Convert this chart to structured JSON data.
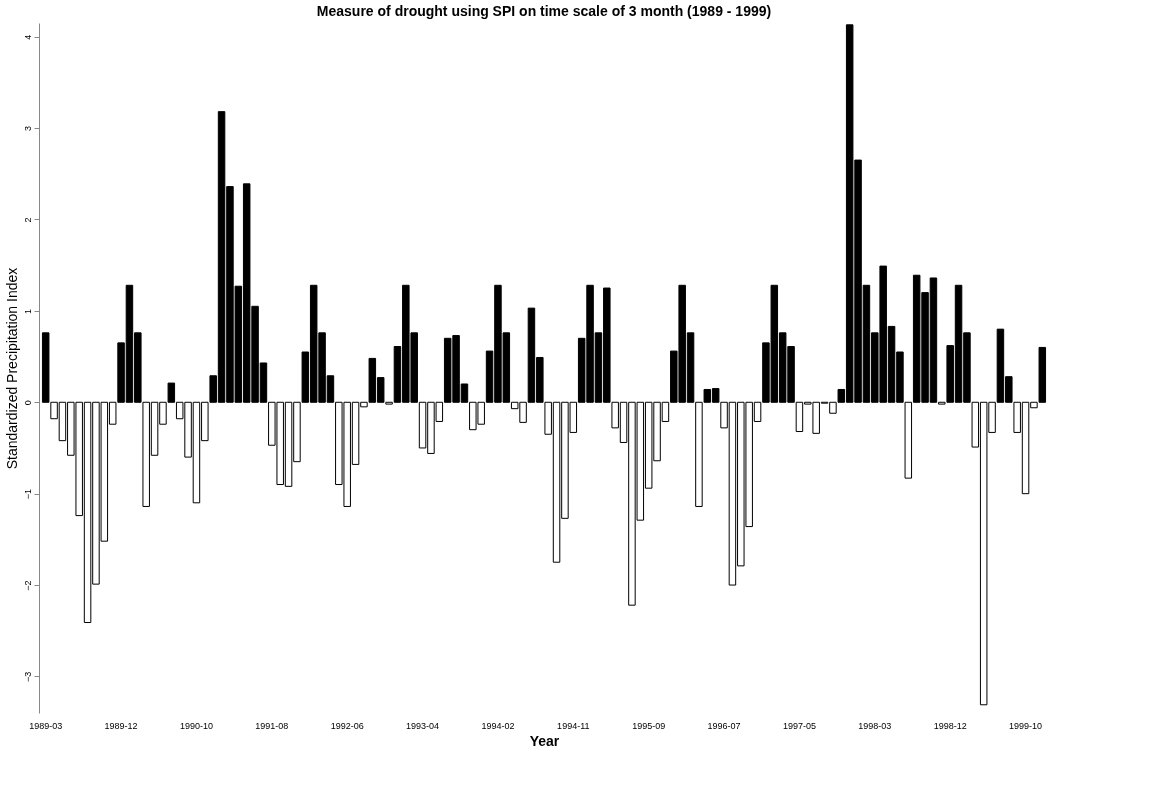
{
  "chart_data": {
    "type": "bar",
    "title": "Measure of drought using SPI on time scale of 3 month (1989 - 1999)",
    "xlabel": "Year",
    "ylabel": "Standardized Precipitation Index",
    "categories": [
      "1989-03",
      null,
      null,
      null,
      null,
      null,
      null,
      null,
      null,
      "1989-12",
      null,
      null,
      null,
      null,
      null,
      null,
      null,
      null,
      "1990-10",
      null,
      null,
      null,
      null,
      null,
      null,
      null,
      null,
      "1991-08",
      null,
      null,
      null,
      null,
      null,
      null,
      null,
      null,
      "1992-06",
      null,
      null,
      null,
      null,
      null,
      null,
      null,
      null,
      "1993-04",
      null,
      null,
      null,
      null,
      null,
      null,
      null,
      null,
      "1994-02",
      null,
      null,
      null,
      null,
      null,
      null,
      null,
      null,
      "1994-11",
      null,
      null,
      null,
      null,
      null,
      null,
      null,
      null,
      "1995-09",
      null,
      null,
      null,
      null,
      null,
      null,
      null,
      null,
      "1996-07",
      null,
      null,
      null,
      null,
      null,
      null,
      null,
      null,
      "1997-05",
      null,
      null,
      null,
      null,
      null,
      null,
      null,
      null,
      "1998-03",
      null,
      null,
      null,
      null,
      null,
      null,
      null,
      null,
      "1998-12",
      null,
      null,
      null,
      null,
      null,
      null,
      null,
      null,
      "1999-10",
      null,
      null
    ],
    "values": [
      0.76,
      -0.18,
      -0.42,
      -0.58,
      -1.24,
      -2.41,
      -1.99,
      -1.52,
      -0.24,
      0.65,
      1.28,
      0.76,
      -1.14,
      -0.58,
      -0.24,
      0.21,
      -0.18,
      -0.6,
      -1.1,
      -0.42,
      0.29,
      3.18,
      2.36,
      1.27,
      2.39,
      1.05,
      0.43,
      -0.47,
      -0.9,
      -0.92,
      -0.65,
      0.55,
      1.28,
      0.76,
      0.29,
      -0.9,
      -1.14,
      -0.68,
      -0.05,
      0.48,
      0.27,
      -0.02,
      0.61,
      1.28,
      0.76,
      -0.5,
      -0.56,
      -0.21,
      0.7,
      0.73,
      0.2,
      -0.3,
      -0.24,
      0.56,
      1.28,
      0.76,
      -0.07,
      -0.22,
      1.03,
      0.49,
      -0.35,
      -1.75,
      -1.27,
      -0.33,
      0.7,
      1.28,
      0.76,
      1.25,
      -0.28,
      -0.44,
      -2.22,
      -1.29,
      -0.94,
      -0.64,
      -0.21,
      0.56,
      1.28,
      0.76,
      -1.14,
      0.14,
      0.15,
      -0.28,
      -2.0,
      -1.79,
      -1.36,
      -0.21,
      0.65,
      1.28,
      0.76,
      0.61,
      -0.32,
      -0.02,
      -0.34,
      -0.01,
      -0.12,
      0.14,
      4.13,
      2.65,
      1.28,
      0.76,
      1.49,
      0.83,
      0.55,
      -0.83,
      1.39,
      1.2,
      1.36,
      -0.02,
      0.62,
      1.28,
      0.76,
      -0.49,
      -3.31,
      -0.33,
      0.8,
      0.28,
      -0.33,
      -1.0,
      -0.06,
      0.6
    ],
    "colors": [
      "#000000",
      "#ffffff",
      "#ffffff",
      "#ffffff",
      "#ffffff",
      "#ffffff",
      "#ffffff",
      "#ffffff",
      "#ffffff",
      "#000000",
      "#000000",
      "#000000",
      "#ffffff",
      "#ffffff",
      "#ffffff",
      "#000000",
      "#ffffff",
      "#ffffff",
      "#ffffff",
      "#ffffff",
      "#000000",
      "#000000",
      "#000000",
      "#000000",
      "#000000",
      "#000000",
      "#000000",
      "#ffffff",
      "#ffffff",
      "#ffffff",
      "#ffffff",
      "#000000",
      "#000000",
      "#000000",
      "#000000",
      "#ffffff",
      "#ffffff",
      "#ffffff",
      "#ffffff",
      "#000000",
      "#000000",
      "#ffffff",
      "#000000",
      "#000000",
      "#000000",
      "#ffffff",
      "#ffffff",
      "#ffffff",
      "#000000",
      "#000000",
      "#000000",
      "#ffffff",
      "#ffffff",
      "#000000",
      "#000000",
      "#000000",
      "#ffffff",
      "#ffffff",
      "#000000",
      "#000000",
      "#ffffff",
      "#ffffff",
      "#ffffff",
      "#ffffff",
      "#000000",
      "#000000",
      "#000000",
      "#000000",
      "#ffffff",
      "#ffffff",
      "#ffffff",
      "#ffffff",
      "#ffffff",
      "#ffffff",
      "#ffffff",
      "#000000",
      "#000000",
      "#000000",
      "#ffffff",
      "#000000",
      "#000000",
      "#ffffff",
      "#ffffff",
      "#ffffff",
      "#ffffff",
      "#ffffff",
      "#000000",
      "#000000",
      "#000000",
      "#000000",
      "#ffffff",
      "#ffffff",
      "#ffffff",
      "#ffffff",
      "#ffffff",
      "#000000",
      "#000000",
      "#000000",
      "#000000",
      "#000000",
      "#000000",
      "#000000",
      "#000000",
      "#ffffff",
      "#000000",
      "#000000",
      "#000000",
      "#ffffff",
      "#000000",
      "#000000",
      "#000000",
      "#ffffff",
      "#ffffff",
      "#ffffff",
      "#000000",
      "#000000",
      "#ffffff",
      "#ffffff",
      "#ffffff",
      "#000000"
    ],
    "ylim": [
      -3.4,
      4.15
    ],
    "yticks": [
      -3,
      -2,
      -1,
      0,
      1,
      2,
      3,
      4
    ],
    "grid": false
  }
}
